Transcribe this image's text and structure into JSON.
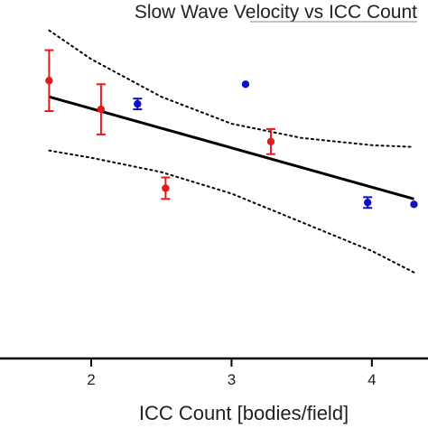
{
  "chart_data": {
    "type": "scatter",
    "title": "Slow Wave Velocity vs ICC Count",
    "xlabel": "ICC Count [bodies/field]",
    "ylabel": "",
    "xlim": [
      1.35,
      4.4
    ],
    "ylim": [
      0,
      10
    ],
    "x_ticks": [
      2,
      3,
      4
    ],
    "x_tick_labels": [
      "2",
      "3",
      "4"
    ],
    "grid": false,
    "series": [
      {
        "color": "#e31a1c",
        "marker": "circle",
        "points": [
          {
            "x": 1.7,
            "y": 7.75,
            "err": 0.85
          },
          {
            "x": 2.07,
            "y": 6.95,
            "err": 0.7
          },
          {
            "x": 2.53,
            "y": 4.75,
            "err": 0.3
          },
          {
            "x": 3.28,
            "y": 6.05,
            "err": 0.35
          }
        ]
      },
      {
        "color": "#1010cc",
        "marker": "circle",
        "points": [
          {
            "x": 2.33,
            "y": 7.1,
            "err": 0.15
          },
          {
            "x": 3.1,
            "y": 7.65,
            "err": 0
          },
          {
            "x": 3.97,
            "y": 4.35,
            "err": 0.15
          },
          {
            "x": 4.3,
            "y": 4.3,
            "err": 0
          }
        ]
      }
    ],
    "fit_line": {
      "x": [
        1.7,
        4.3
      ],
      "y": [
        7.3,
        4.45
      ],
      "color": "#000000",
      "style": "solid"
    },
    "confidence_band": {
      "style": "dotted",
      "color": "#000000",
      "upper": {
        "x": [
          1.7,
          2.0,
          2.5,
          3.0,
          3.5,
          4.0,
          4.3
        ],
        "y": [
          9.15,
          8.35,
          7.3,
          6.55,
          6.15,
          5.95,
          5.9
        ]
      },
      "lower": {
        "x": [
          1.7,
          2.0,
          2.5,
          3.0,
          3.5,
          4.0,
          4.3
        ],
        "y": [
          5.8,
          5.6,
          5.2,
          4.6,
          3.8,
          3.0,
          2.4
        ]
      }
    }
  }
}
